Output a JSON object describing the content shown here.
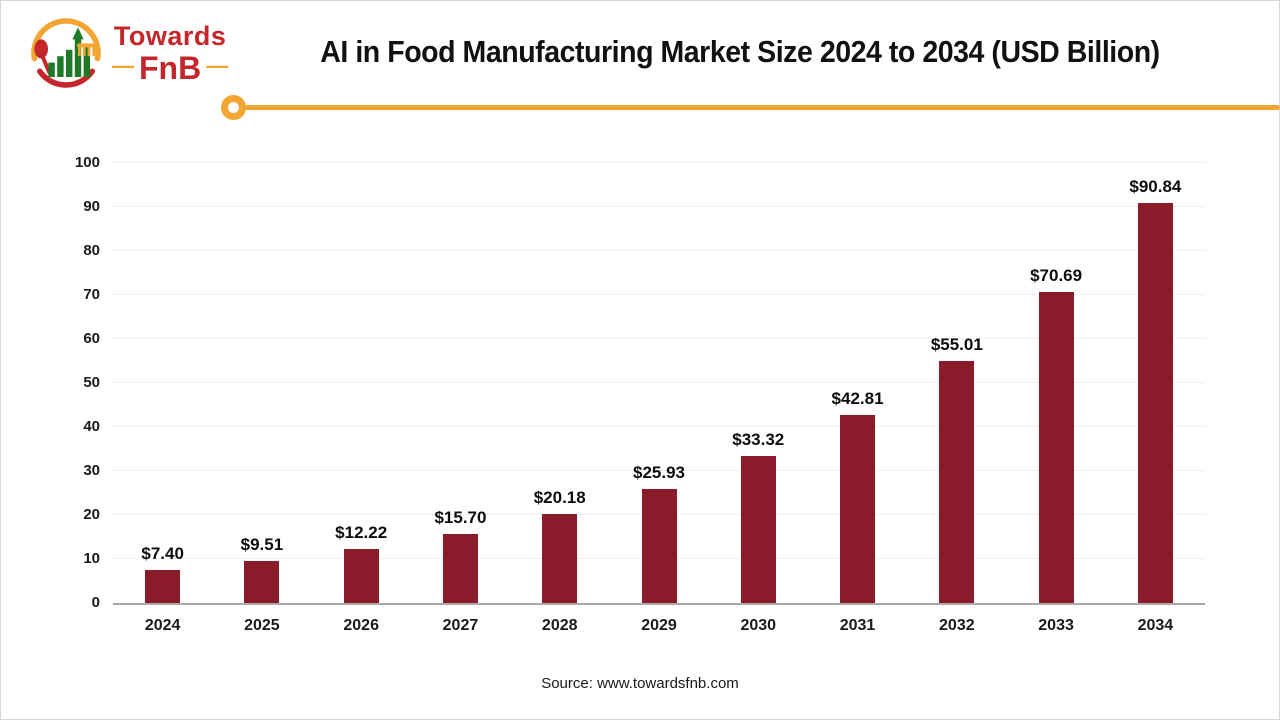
{
  "logo": {
    "brand_top": "Towards",
    "brand_bottom": "FnB",
    "dash": "—",
    "colors": {
      "red": "#c4272b",
      "yellow": "#f3a533",
      "green": "#1f7a28"
    }
  },
  "header": {
    "title": "AI in Food Manufacturing Market Size 2024 to 2034 (USD Billion)",
    "accent_color": "#f3a533"
  },
  "chart_data": {
    "type": "bar",
    "title": "AI in Food Manufacturing Market Size 2024 to 2034 (USD Billion)",
    "categories": [
      "2024",
      "2025",
      "2026",
      "2027",
      "2028",
      "2029",
      "2030",
      "2031",
      "2032",
      "2033",
      "2034"
    ],
    "values": [
      7.4,
      9.51,
      12.22,
      15.7,
      20.18,
      25.93,
      33.32,
      42.81,
      55.01,
      70.69,
      90.84
    ],
    "data_labels": [
      "$7.40",
      "$9.51",
      "$12.22",
      "$15.70",
      "$20.18",
      "$25.93",
      "$33.32",
      "$42.81",
      "$55.01",
      "$70.69",
      "$90.84"
    ],
    "xlabel": "",
    "ylabel": "",
    "ylim": [
      0,
      100
    ],
    "yticks": [
      0,
      10,
      20,
      30,
      40,
      50,
      60,
      70,
      80,
      90,
      100
    ],
    "grid": "horizontal",
    "legend": "none",
    "bar_color": "#8a1b2b"
  },
  "footer": {
    "source": "Source: www.towardsfnb.com"
  }
}
